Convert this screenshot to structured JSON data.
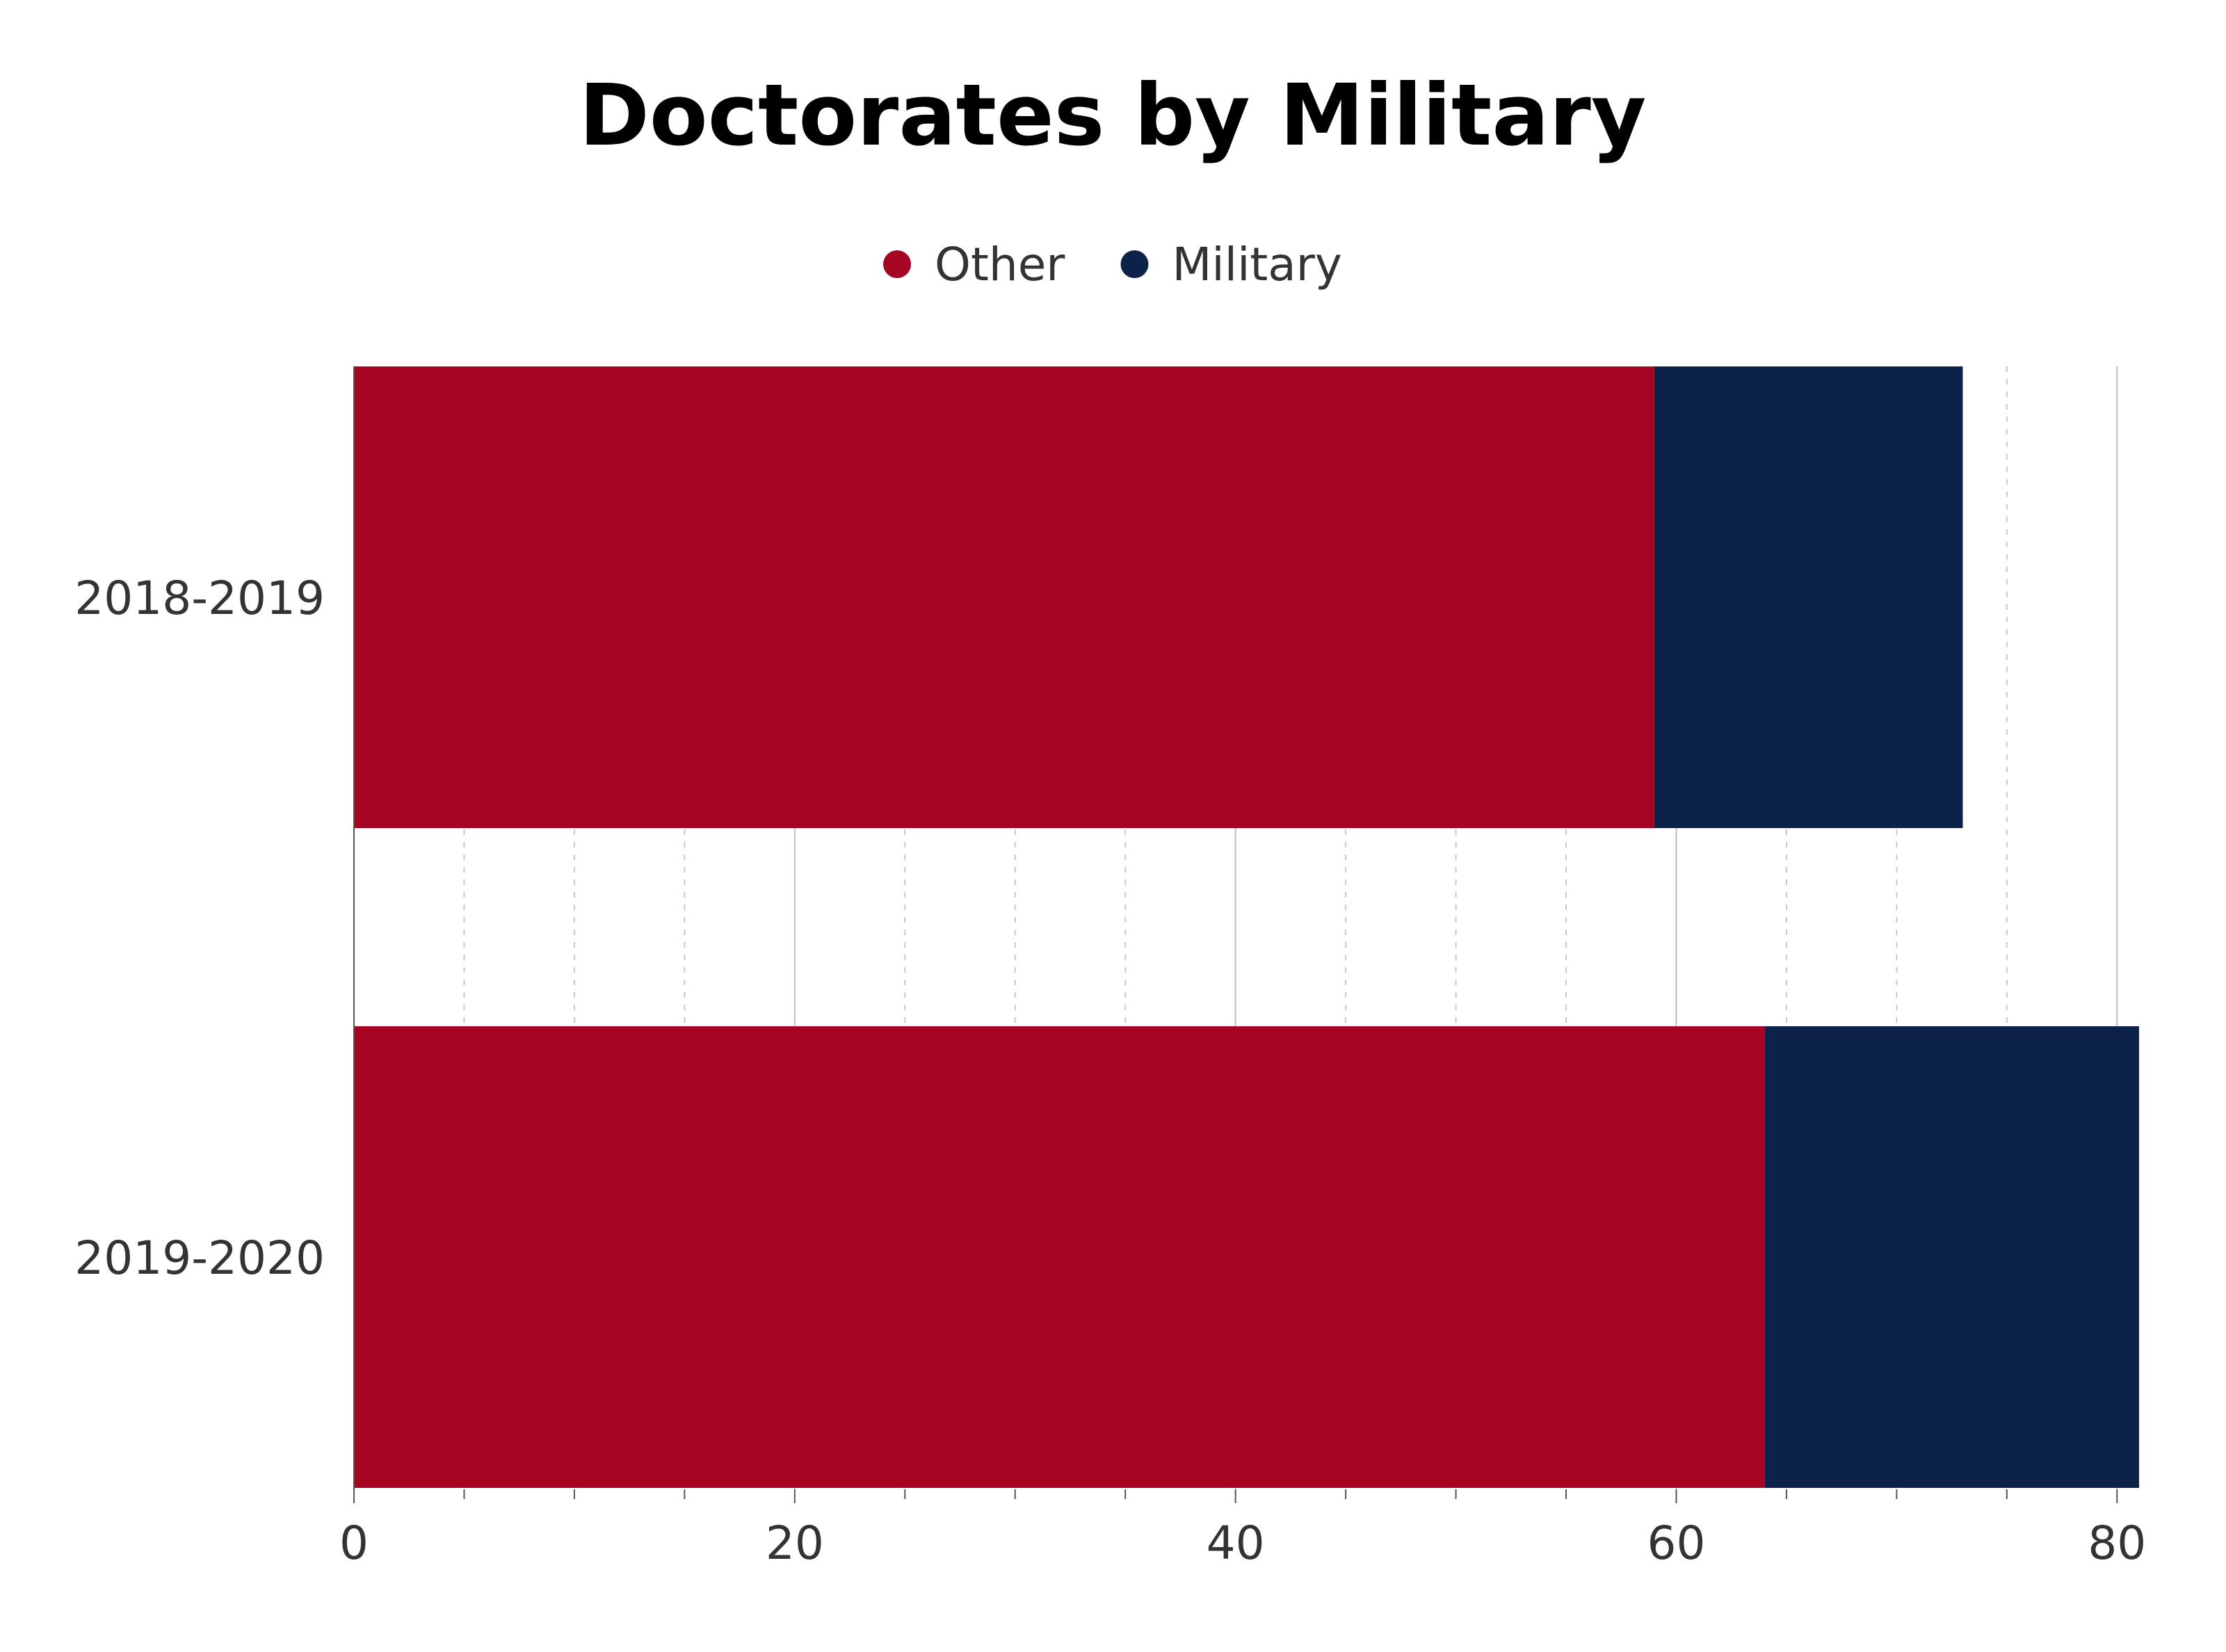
{
  "chart_data": {
    "type": "bar",
    "orientation": "horizontal",
    "stacked": true,
    "title": "Doctorates by Military",
    "categories": [
      "2018-2019",
      "2019-2020"
    ],
    "series": [
      {
        "name": "Other",
        "color": "#a50523",
        "values": [
          59,
          64
        ]
      },
      {
        "name": "Military",
        "color": "#0c2249",
        "values": [
          14,
          17
        ]
      }
    ],
    "xlabel": "",
    "ylabel": "",
    "xlim": [
      0,
      81
    ],
    "xticks": [
      0,
      20,
      40,
      60,
      80
    ],
    "xtick_labels": [
      "0",
      "20",
      "40",
      "60",
      "80"
    ],
    "minor_grid_step": 5,
    "grid": true,
    "legend_position": "top-center"
  }
}
